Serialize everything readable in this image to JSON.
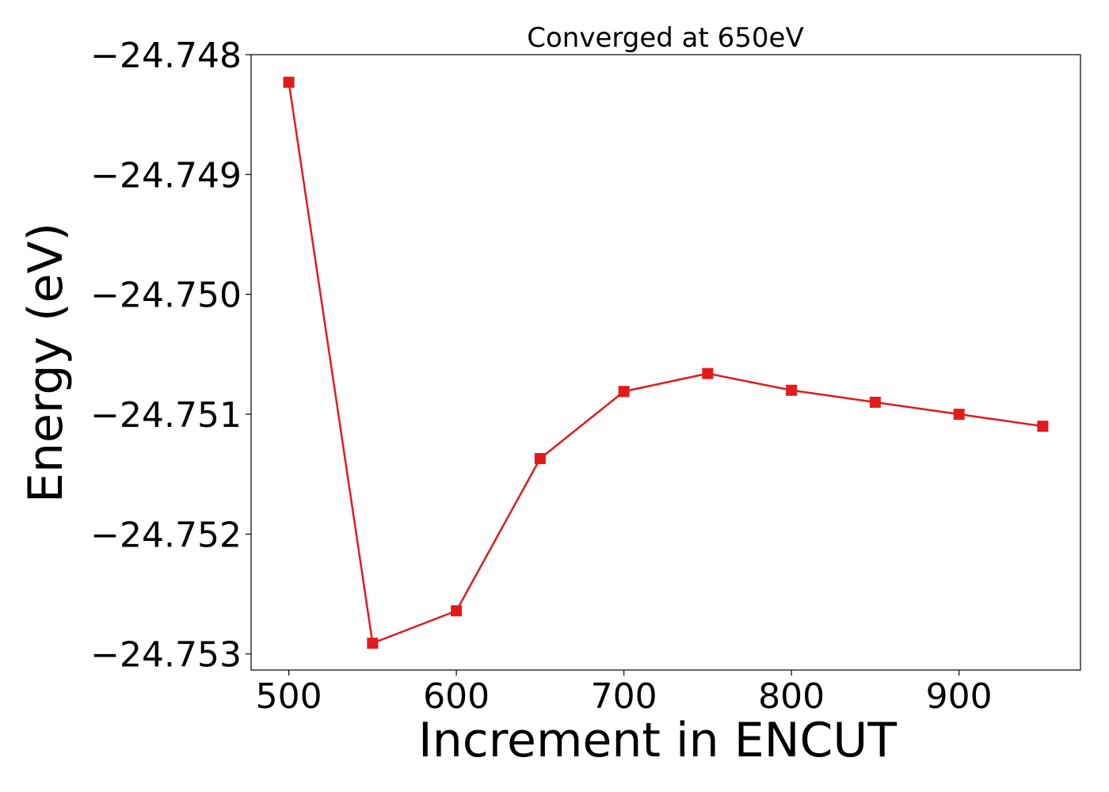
{
  "chart_data": {
    "type": "line",
    "title": "Converged at 650eV",
    "xlabel": "Increment in ENCUT",
    "ylabel": "Energy (eV)",
    "x": [
      500,
      550,
      600,
      650,
      700,
      750,
      800,
      850,
      900,
      950
    ],
    "series": [
      {
        "values": [
          -24.74823,
          -24.75291,
          -24.75264,
          -24.75137,
          -24.75081,
          -24.75066,
          -24.7508,
          -24.7509,
          -24.751,
          -24.7511
        ],
        "color": "#e31a1c",
        "marker": "square"
      }
    ],
    "xticks": [
      500,
      600,
      700,
      800,
      900
    ],
    "xtick_labels": [
      "500",
      "600",
      "700",
      "800",
      "900"
    ],
    "yticks": [
      -24.748,
      -24.749,
      -24.75,
      -24.751,
      -24.752,
      -24.753
    ],
    "ytick_labels": [
      "−24.748",
      "−24.749",
      "−24.750",
      "−24.751",
      "−24.752",
      "−24.753"
    ],
    "xlim": [
      477.5,
      972.5
    ],
    "ylim": [
      -24.753134,
      -24.748
    ],
    "grid": false,
    "legend": "none"
  }
}
